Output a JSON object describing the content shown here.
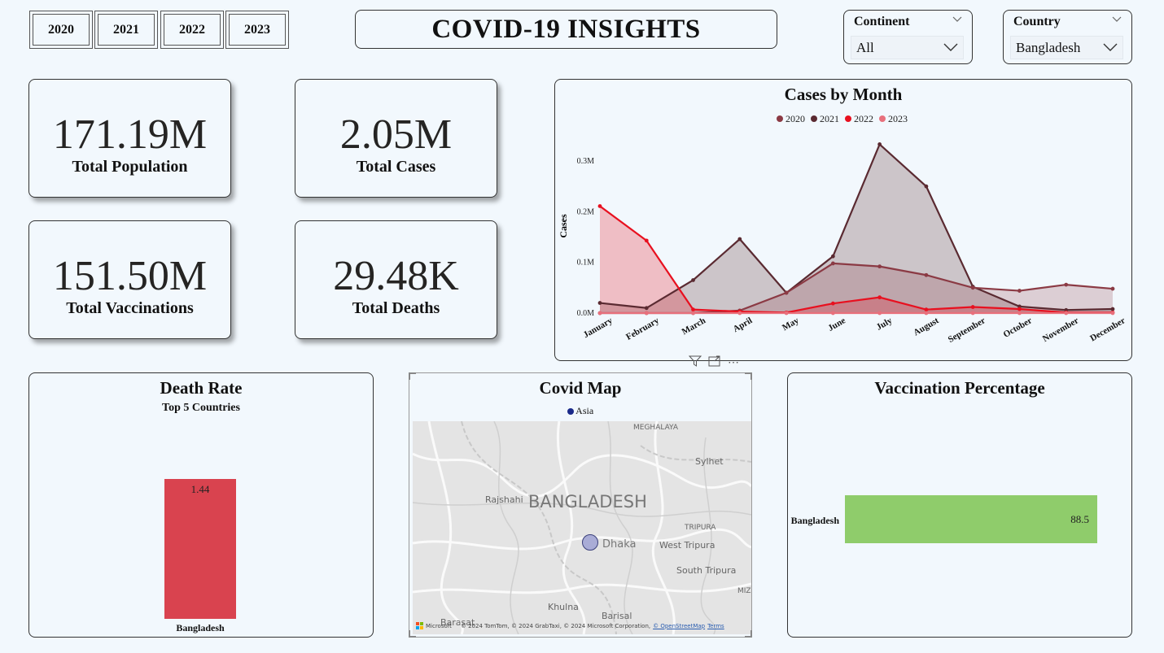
{
  "years": [
    "2020",
    "2021",
    "2022",
    "2023"
  ],
  "title": "COVID-19 INSIGHTS",
  "slicers": {
    "continent": {
      "label": "Continent",
      "value": "All"
    },
    "country": {
      "label": "Country",
      "value": "Bangladesh"
    }
  },
  "kpis": {
    "population": {
      "value": "171.19M",
      "label": "Total Population"
    },
    "cases": {
      "value": "2.05M",
      "label": "Total Cases"
    },
    "vaccinations": {
      "value": "151.50M",
      "label": "Total Vaccinations"
    },
    "deaths": {
      "value": "29.48K",
      "label": "Total Deaths"
    }
  },
  "cases_chart": {
    "title": "Cases by Month",
    "ylabel": "Cases"
  },
  "death_rate": {
    "title": "Death Rate",
    "subtitle": "Top 5 Countries"
  },
  "map": {
    "title": "Covid Map",
    "legend": "Asia",
    "labels": {
      "meghalaya": "MEGHALAYA",
      "sylhet": "Sylhet",
      "rajshahi": "Rajshahi",
      "bangladesh": "BANGLADESH",
      "tripura": "TRIPURA",
      "dhaka": "Dhaka",
      "west_tripura": "West Tripura",
      "south_tripura": "South Tripura",
      "khulna": "Khulna",
      "barisal": "Barisal",
      "barasat": "Barasat",
      "miz": "MIZ"
    },
    "attribution": "© 2024 TomTom, © 2024 GrabTaxi, © 2024 Microsoft Corporation,",
    "osm": "© OpenStreetMap",
    "terms": "Terms",
    "ms_logo": "Microsoft"
  },
  "vaccination": {
    "title": "Vaccination Percentage"
  },
  "colors": {
    "c2020": "#8b3a44",
    "c2021": "#5a2a31",
    "c2022": "#e8101f",
    "c2023": "#e8707c",
    "death_bar": "#d9434f",
    "vacc_bar": "#8fcc6b",
    "map_dot": "#a9acd6",
    "legend_asia": "#1a2a8a"
  },
  "chart_data": [
    {
      "type": "area",
      "title": "Cases by Month",
      "ylabel": "Cases",
      "categories": [
        "January",
        "February",
        "March",
        "April",
        "May",
        "June",
        "July",
        "August",
        "September",
        "October",
        "November",
        "December"
      ],
      "ylim": [
        0,
        300000
      ],
      "yticks": [
        "0.0M",
        "0.1M",
        "0.2M",
        "0.3M"
      ],
      "legend": "top",
      "series": [
        {
          "name": "2020",
          "values": [
            0,
            0,
            0,
            5000,
            40000,
            98000,
            92000,
            75000,
            50000,
            44000,
            56000,
            48000
          ]
        },
        {
          "name": "2021",
          "values": [
            20000,
            10000,
            65000,
            146000,
            40000,
            112000,
            333000,
            250000,
            52000,
            13000,
            6000,
            8000
          ]
        },
        {
          "name": "2022",
          "values": [
            211000,
            143000,
            7000,
            3000,
            1000,
            19000,
            31000,
            7000,
            12000,
            8000,
            1000,
            1000
          ]
        },
        {
          "name": "2023",
          "values": [
            0,
            0,
            0,
            0,
            0,
            0,
            0,
            0,
            0,
            0,
            0,
            0
          ]
        }
      ]
    },
    {
      "type": "bar",
      "title": "Death Rate",
      "subtitle": "Top 5 Countries",
      "categories": [
        "Bangladesh"
      ],
      "values": [
        1.44
      ]
    },
    {
      "type": "bar",
      "orientation": "horizontal",
      "title": "Vaccination Percentage",
      "categories": [
        "Bangladesh"
      ],
      "values": [
        88.5
      ]
    }
  ]
}
